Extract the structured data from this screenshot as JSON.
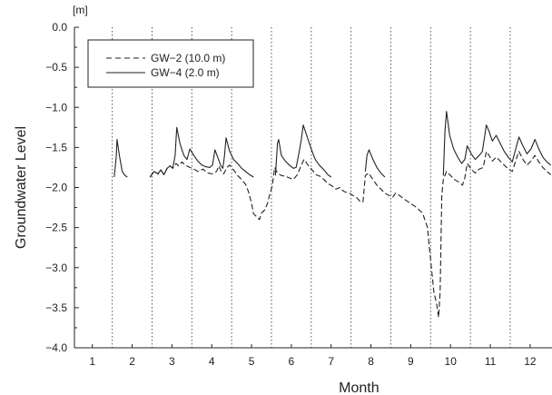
{
  "chart_data": {
    "type": "line",
    "xlabel": "Month",
    "ylabel": "Groundwater Level",
    "y_unit": "[m]",
    "xlim": [
      0.55,
      12.55
    ],
    "ylim": [
      -4.0,
      0.0
    ],
    "x_ticks": [
      1,
      2,
      3,
      4,
      5,
      6,
      7,
      8,
      9,
      10,
      11,
      12
    ],
    "y_ticks": [
      {
        "value": 0.0,
        "label": "0.0"
      },
      {
        "value": -0.5,
        "label": "−0.5"
      },
      {
        "value": -1.0,
        "label": "−1.0"
      },
      {
        "value": -1.5,
        "label": "−1.5"
      },
      {
        "value": -2.0,
        "label": "−2.0"
      },
      {
        "value": -2.5,
        "label": "−2.5"
      },
      {
        "value": -3.0,
        "label": "−3.0"
      },
      {
        "value": -3.5,
        "label": "−3.5"
      },
      {
        "value": -4.0,
        "label": "−4.0"
      }
    ],
    "month_boundaries": [
      1.5,
      2.5,
      3.5,
      4.5,
      5.5,
      6.5,
      7.5,
      8.5,
      9.5,
      10.5,
      11.5
    ],
    "legend_position": "top-left",
    "grid": false,
    "series": [
      {
        "name": "GW−2 (10.0 m)",
        "style": "dashed",
        "color": "#222222",
        "segments": [
          [
            [
              2.45,
              -1.87
            ],
            [
              2.55,
              -1.8
            ],
            [
              2.65,
              -1.83
            ],
            [
              2.72,
              -1.78
            ],
            [
              2.8,
              -1.84
            ],
            [
              2.88,
              -1.76
            ],
            [
              2.95,
              -1.73
            ],
            [
              3.02,
              -1.76
            ],
            [
              3.1,
              -1.7
            ],
            [
              3.17,
              -1.73
            ],
            [
              3.25,
              -1.68
            ],
            [
              3.33,
              -1.72
            ],
            [
              3.45,
              -1.75
            ],
            [
              3.55,
              -1.77
            ],
            [
              3.65,
              -1.8
            ],
            [
              3.78,
              -1.77
            ],
            [
              3.9,
              -1.82
            ],
            [
              4.02,
              -1.83
            ],
            [
              4.12,
              -1.8
            ],
            [
              4.18,
              -1.73
            ],
            [
              4.23,
              -1.79
            ],
            [
              4.3,
              -1.83
            ],
            [
              4.38,
              -1.75
            ],
            [
              4.45,
              -1.72
            ],
            [
              4.55,
              -1.78
            ],
            [
              4.65,
              -1.85
            ],
            [
              4.75,
              -1.9
            ],
            [
              4.85,
              -1.96
            ],
            [
              4.92,
              -2.05
            ],
            [
              5.0,
              -2.2
            ],
            [
              5.05,
              -2.33
            ],
            [
              5.12,
              -2.36
            ],
            [
              5.2,
              -2.4
            ],
            [
              5.25,
              -2.32
            ],
            [
              5.33,
              -2.28
            ],
            [
              5.4,
              -2.2
            ],
            [
              5.45,
              -2.1
            ],
            [
              5.52,
              -1.98
            ],
            [
              5.58,
              -1.75
            ],
            [
              5.65,
              -1.82
            ],
            [
              5.75,
              -1.85
            ],
            [
              5.85,
              -1.86
            ],
            [
              5.95,
              -1.88
            ],
            [
              6.05,
              -1.9
            ],
            [
              6.15,
              -1.84
            ],
            [
              6.25,
              -1.72
            ],
            [
              6.32,
              -1.65
            ],
            [
              6.42,
              -1.72
            ],
            [
              6.52,
              -1.78
            ],
            [
              6.62,
              -1.84
            ],
            [
              6.72,
              -1.86
            ],
            [
              6.82,
              -1.9
            ],
            [
              6.92,
              -1.95
            ],
            [
              7.02,
              -1.98
            ],
            [
              7.12,
              -2.02
            ],
            [
              7.22,
              -2.0
            ],
            [
              7.32,
              -2.05
            ],
            [
              7.45,
              -2.07
            ],
            [
              7.55,
              -2.1
            ],
            [
              7.65,
              -2.13
            ],
            [
              7.72,
              -2.17
            ],
            [
              7.8,
              -2.18
            ],
            [
              7.86,
              -1.85
            ],
            [
              7.94,
              -1.82
            ],
            [
              8.05,
              -1.9
            ],
            [
              8.15,
              -1.97
            ],
            [
              8.25,
              -2.02
            ],
            [
              8.35,
              -2.07
            ],
            [
              8.45,
              -2.1
            ],
            [
              8.55,
              -2.12
            ],
            [
              8.62,
              -2.07
            ],
            [
              8.72,
              -2.1
            ],
            [
              8.85,
              -2.15
            ],
            [
              9.0,
              -2.2
            ],
            [
              9.15,
              -2.25
            ],
            [
              9.3,
              -2.32
            ],
            [
              9.42,
              -2.5
            ],
            [
              9.5,
              -2.9
            ],
            [
              9.58,
              -3.3
            ],
            [
              9.65,
              -3.45
            ],
            [
              9.7,
              -3.62
            ],
            [
              9.74,
              -3.3
            ],
            [
              9.78,
              -2.1
            ],
            [
              9.82,
              -1.9
            ],
            [
              9.9,
              -1.8
            ],
            [
              10.0,
              -1.85
            ],
            [
              10.1,
              -1.9
            ],
            [
              10.2,
              -1.93
            ],
            [
              10.3,
              -1.97
            ],
            [
              10.36,
              -1.88
            ],
            [
              10.42,
              -1.7
            ],
            [
              10.52,
              -1.77
            ],
            [
              10.62,
              -1.82
            ],
            [
              10.72,
              -1.77
            ],
            [
              10.82,
              -1.75
            ],
            [
              10.9,
              -1.55
            ],
            [
              10.97,
              -1.6
            ],
            [
              11.05,
              -1.67
            ],
            [
              11.15,
              -1.62
            ],
            [
              11.25,
              -1.67
            ],
            [
              11.35,
              -1.72
            ],
            [
              11.45,
              -1.77
            ],
            [
              11.55,
              -1.8
            ],
            [
              11.65,
              -1.65
            ],
            [
              11.72,
              -1.55
            ],
            [
              11.82,
              -1.65
            ],
            [
              11.92,
              -1.72
            ],
            [
              12.02,
              -1.67
            ],
            [
              12.12,
              -1.6
            ],
            [
              12.22,
              -1.68
            ],
            [
              12.32,
              -1.75
            ],
            [
              12.42,
              -1.8
            ],
            [
              12.52,
              -1.84
            ]
          ]
        ]
      },
      {
        "name": "GW−4 (2.0 m)",
        "style": "solid",
        "color": "#222222",
        "segments": [
          [
            [
              1.55,
              -1.87
            ],
            [
              1.6,
              -1.62
            ],
            [
              1.62,
              -1.4
            ],
            [
              1.68,
              -1.6
            ],
            [
              1.75,
              -1.8
            ],
            [
              1.82,
              -1.85
            ],
            [
              1.88,
              -1.87
            ]
          ],
          [
            [
              2.45,
              -1.87
            ],
            [
              2.55,
              -1.8
            ],
            [
              2.65,
              -1.83
            ],
            [
              2.72,
              -1.78
            ],
            [
              2.8,
              -1.84
            ],
            [
              2.88,
              -1.76
            ],
            [
              2.95,
              -1.73
            ],
            [
              3.02,
              -1.76
            ],
            [
              3.08,
              -1.6
            ],
            [
              3.12,
              -1.25
            ],
            [
              3.2,
              -1.45
            ],
            [
              3.3,
              -1.6
            ],
            [
              3.38,
              -1.65
            ],
            [
              3.45,
              -1.52
            ],
            [
              3.55,
              -1.6
            ],
            [
              3.65,
              -1.67
            ],
            [
              3.75,
              -1.72
            ],
            [
              3.85,
              -1.74
            ],
            [
              3.95,
              -1.75
            ],
            [
              4.02,
              -1.72
            ],
            [
              4.08,
              -1.53
            ],
            [
              4.15,
              -1.62
            ],
            [
              4.22,
              -1.72
            ],
            [
              4.28,
              -1.76
            ],
            [
              4.32,
              -1.6
            ],
            [
              4.36,
              -1.38
            ],
            [
              4.45,
              -1.55
            ],
            [
              4.55,
              -1.65
            ],
            [
              4.65,
              -1.7
            ],
            [
              4.75,
              -1.76
            ],
            [
              4.85,
              -1.8
            ],
            [
              4.95,
              -1.84
            ],
            [
              5.05,
              -1.87
            ]
          ],
          [
            [
              5.6,
              -1.85
            ],
            [
              5.65,
              -1.45
            ],
            [
              5.68,
              -1.4
            ],
            [
              5.75,
              -1.6
            ],
            [
              5.85,
              -1.67
            ],
            [
              5.95,
              -1.72
            ],
            [
              6.05,
              -1.76
            ],
            [
              6.12,
              -1.75
            ],
            [
              6.18,
              -1.6
            ],
            [
              6.25,
              -1.4
            ],
            [
              6.3,
              -1.22
            ],
            [
              6.4,
              -1.37
            ],
            [
              6.5,
              -1.52
            ],
            [
              6.6,
              -1.65
            ],
            [
              6.7,
              -1.72
            ],
            [
              6.8,
              -1.77
            ],
            [
              6.92,
              -1.84
            ],
            [
              7.0,
              -1.87
            ]
          ],
          [
            [
              7.86,
              -1.8
            ],
            [
              7.9,
              -1.6
            ],
            [
              7.95,
              -1.53
            ],
            [
              8.05,
              -1.65
            ],
            [
              8.15,
              -1.75
            ],
            [
              8.25,
              -1.82
            ],
            [
              8.35,
              -1.87
            ]
          ],
          [
            [
              9.82,
              -1.85
            ],
            [
              9.86,
              -1.3
            ],
            [
              9.9,
              -1.05
            ],
            [
              9.98,
              -1.35
            ],
            [
              10.08,
              -1.52
            ],
            [
              10.18,
              -1.62
            ],
            [
              10.28,
              -1.7
            ],
            [
              10.36,
              -1.65
            ],
            [
              10.42,
              -1.48
            ],
            [
              10.52,
              -1.58
            ],
            [
              10.62,
              -1.65
            ],
            [
              10.72,
              -1.6
            ],
            [
              10.8,
              -1.55
            ],
            [
              10.9,
              -1.22
            ],
            [
              10.97,
              -1.3
            ],
            [
              11.05,
              -1.42
            ],
            [
              11.15,
              -1.35
            ],
            [
              11.25,
              -1.45
            ],
            [
              11.35,
              -1.55
            ],
            [
              11.45,
              -1.62
            ],
            [
              11.55,
              -1.68
            ],
            [
              11.65,
              -1.5
            ],
            [
              11.72,
              -1.37
            ],
            [
              11.82,
              -1.48
            ],
            [
              11.92,
              -1.58
            ],
            [
              12.02,
              -1.52
            ],
            [
              12.12,
              -1.4
            ],
            [
              12.22,
              -1.52
            ],
            [
              12.32,
              -1.62
            ],
            [
              12.42,
              -1.68
            ],
            [
              12.52,
              -1.72
            ]
          ]
        ]
      }
    ]
  }
}
